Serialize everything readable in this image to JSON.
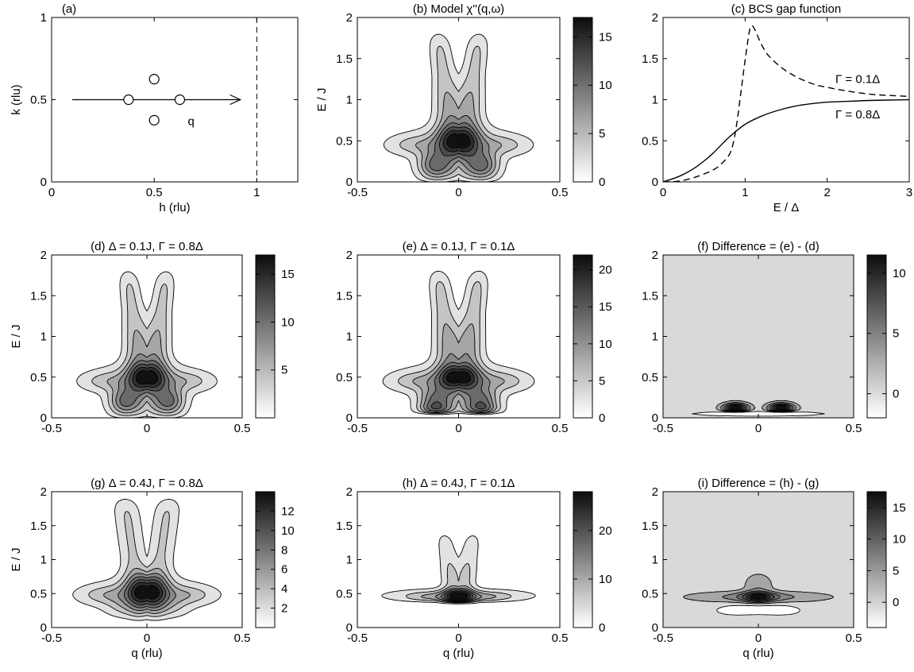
{
  "colors": {
    "background": "#ffffff",
    "axis": "#000000",
    "difference_background": "#d9d9d9",
    "map_levels_light_to_dark": [
      "#ffffff",
      "#e2e2e2",
      "#c4c4c4",
      "#a6a6a6",
      "#888888",
      "#6a6a6a",
      "#4c4c4c",
      "#2e2e2e",
      "#111111"
    ],
    "colormap": "gray (white = low, black = high)"
  },
  "chart_data": [
    {
      "id": "a",
      "type": "scatter",
      "title": "(a)",
      "xlabel": "h  (rlu)",
      "ylabel": "k  (rlu)",
      "xlim": [
        0,
        1.2
      ],
      "ylim": [
        0,
        1
      ],
      "xticks": [
        0,
        0.5,
        1
      ],
      "yticks": [
        0,
        0.5,
        1
      ],
      "points": [
        [
          0.375,
          0.5
        ],
        [
          0.5,
          0.625
        ],
        [
          0.625,
          0.5
        ],
        [
          0.5,
          0.375
        ]
      ],
      "arrow": {
        "from": [
          0.1,
          0.5
        ],
        "to": [
          0.92,
          0.5
        ],
        "label": "q",
        "label_at": [
          0.68,
          0.37
        ]
      },
      "dashed_vline": 1,
      "grid": false
    },
    {
      "id": "b",
      "type": "heatmap",
      "title": "(b)  Model χ''(q,ω)",
      "xlabel": "",
      "ylabel": "E / J",
      "xlim": [
        -0.5,
        0.5
      ],
      "ylim": [
        0,
        2
      ],
      "xticks": [
        -0.5,
        0,
        0.5
      ],
      "yticks": [
        0,
        0.5,
        1,
        1.5,
        2
      ],
      "colorbar": {
        "range": [
          0,
          17
        ],
        "ticks": [
          0,
          5,
          10,
          15
        ]
      },
      "model": "fullgap",
      "peak": 17,
      "pole": 0.5,
      "pole_w": 0.14,
      "pole_a": 0.82
    },
    {
      "id": "c",
      "type": "line",
      "title": "(c)  BCS gap function",
      "xlabel": "E / Δ",
      "ylabel": "",
      "xlim": [
        0,
        3
      ],
      "ylim": [
        0,
        2
      ],
      "xticks": [
        0,
        1,
        2,
        3
      ],
      "yticks": [
        0,
        0.5,
        1,
        1.5,
        2
      ],
      "series": [
        {
          "name": "Γ = 0.1Δ",
          "style": "dashed",
          "x": [
            0,
            0.2,
            0.4,
            0.6,
            0.7,
            0.8,
            0.85,
            0.9,
            0.95,
            1.0,
            1.05,
            1.08,
            1.12,
            1.2,
            1.3,
            1.5,
            1.75,
            2.0,
            2.5,
            3.0
          ],
          "y": [
            0,
            0.01,
            0.06,
            0.14,
            0.21,
            0.32,
            0.45,
            0.72,
            1.1,
            1.48,
            1.82,
            1.9,
            1.85,
            1.67,
            1.52,
            1.35,
            1.22,
            1.15,
            1.07,
            1.04
          ]
        },
        {
          "name": "Γ = 0.8Δ",
          "style": "solid",
          "x": [
            0,
            0.2,
            0.4,
            0.6,
            0.8,
            1.0,
            1.2,
            1.4,
            1.6,
            1.8,
            2.0,
            2.25,
            2.5,
            2.75,
            3.0
          ],
          "y": [
            0,
            0.07,
            0.18,
            0.34,
            0.54,
            0.7,
            0.8,
            0.87,
            0.92,
            0.95,
            0.97,
            0.98,
            0.99,
            0.995,
            1.0
          ]
        }
      ],
      "annotations": [
        {
          "text": "Γ = 0.1Δ",
          "at": [
            2.1,
            1.25
          ]
        },
        {
          "text": "Γ = 0.8Δ",
          "at": [
            2.1,
            0.82
          ]
        }
      ]
    },
    {
      "id": "d",
      "type": "heatmap",
      "title": "(d)  Δ = 0.1J, Γ = 0.8Δ",
      "xlabel": "",
      "ylabel": "E / J",
      "xlim": [
        -0.5,
        0.5
      ],
      "ylim": [
        0,
        2
      ],
      "xticks": [
        -0.5,
        0,
        0.5
      ],
      "yticks": [
        0,
        0.5,
        1,
        1.5,
        2
      ],
      "colorbar": {
        "range": [
          0,
          17
        ],
        "ticks": [
          5,
          10,
          15
        ]
      },
      "model": "fullgap",
      "peak": 17,
      "pole": 0.5,
      "pole_w": 0.13,
      "pole_a": 0.85
    },
    {
      "id": "e",
      "type": "heatmap",
      "title": "(e)  Δ = 0.1J, Γ = 0.1Δ",
      "xlabel": "",
      "ylabel": "",
      "xlim": [
        -0.5,
        0.5
      ],
      "ylim": [
        0,
        2
      ],
      "xticks": [
        -0.5,
        0,
        0.5
      ],
      "yticks": [
        0,
        0.5,
        1,
        1.5,
        2
      ],
      "colorbar": {
        "range": [
          0,
          22
        ],
        "ticks": [
          0,
          5,
          10,
          15,
          20
        ]
      },
      "model": "gapped",
      "peak": 22,
      "gap": 0.1,
      "pole": 0.5,
      "pole_w": 0.1,
      "pole_a": 0.7
    },
    {
      "id": "f",
      "type": "heatmap",
      "title": "(f)  Difference = (e) - (d)",
      "xlabel": "",
      "ylabel": "",
      "xlim": [
        -0.5,
        0.5
      ],
      "ylim": [
        0,
        2
      ],
      "xticks": [
        -0.5,
        0,
        0.5
      ],
      "yticks": [
        0,
        0.5,
        1,
        1.5,
        2
      ],
      "colorbar": {
        "range": [
          -2,
          11.5
        ],
        "ticks": [
          0,
          5,
          10
        ]
      },
      "model": "diff",
      "peak": 11.5,
      "positive_lobes": [
        {
          "q": -0.12,
          "E": 0.12
        },
        {
          "q": 0.12,
          "E": 0.12
        }
      ],
      "negative_band_E": 0.05
    },
    {
      "id": "g",
      "type": "heatmap",
      "title": "(g)  Δ = 0.4J, Γ = 0.8Δ",
      "xlabel": "q  (rlu)",
      "ylabel": "E / J",
      "xlim": [
        -0.5,
        0.5
      ],
      "ylim": [
        0,
        2
      ],
      "xticks": [
        -0.5,
        0,
        0.5
      ],
      "yticks": [
        0,
        0.5,
        1,
        1.5,
        2
      ],
      "colorbar": {
        "range": [
          0,
          14
        ],
        "ticks": [
          2,
          4,
          6,
          8,
          10,
          12
        ]
      },
      "model": "broadgap",
      "peak": 14,
      "pole": 0.55,
      "pole_w": 0.18,
      "pole_a": 1.0
    },
    {
      "id": "h",
      "type": "heatmap",
      "title": "(h)  Δ = 0.4J, Γ = 0.1Δ",
      "xlabel": "q  (rlu)",
      "ylabel": "",
      "xlim": [
        -0.5,
        0.5
      ],
      "ylim": [
        0,
        2
      ],
      "xticks": [
        -0.5,
        0,
        0.5
      ],
      "yticks": [
        0,
        0.5,
        1,
        1.5,
        2
      ],
      "colorbar": {
        "range": [
          0,
          28
        ],
        "ticks": [
          0,
          10,
          20
        ]
      },
      "model": "highgap",
      "peak": 28,
      "gap": 0.38,
      "pole": 0.45,
      "pole_w": 0.08,
      "pole_a": 1.0
    },
    {
      "id": "i",
      "type": "heatmap",
      "title": "(i)  Difference = (h) - (g)",
      "xlabel": "q  (rlu)",
      "ylabel": "",
      "xlim": [
        -0.5,
        0.5
      ],
      "ylim": [
        0,
        2
      ],
      "xticks": [
        -0.5,
        0,
        0.5
      ],
      "yticks": [
        0,
        0.5,
        1,
        1.5,
        2
      ],
      "colorbar": {
        "range": [
          -4,
          17.5
        ],
        "ticks": [
          0,
          5,
          10,
          15
        ]
      },
      "model": "diff2",
      "peak": 17.5,
      "positive_center": {
        "q": 0,
        "E": 0.45
      },
      "negative_center": {
        "q": 0,
        "E": 0.27
      }
    }
  ]
}
